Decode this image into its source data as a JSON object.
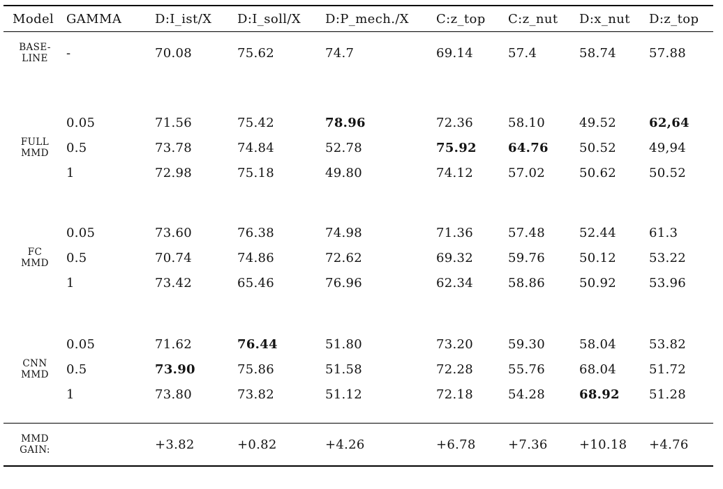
{
  "page": {
    "background_color": "#ffffff",
    "text_color": "#131313",
    "rule_color": "#000000"
  },
  "table": {
    "columns": [
      "Model",
      "GAMMA",
      "D:I_ist/X",
      "D:I_soll/X",
      "D:P_mech./X",
      "C:z_top",
      "C:z_nut",
      "D:x_nut",
      "D:z_top"
    ],
    "groups": [
      {
        "model_lines": [
          "BASE-",
          "LINE"
        ],
        "rows": [
          {
            "gamma": "-",
            "values": [
              "70.08",
              "75.62",
              "74.7",
              "69.14",
              "57.4",
              "58.74",
              "57.88"
            ],
            "bold": []
          }
        ]
      },
      {
        "model_lines": [
          "FULL",
          "MMD"
        ],
        "rows": [
          {
            "gamma": "0.05",
            "values": [
              "71.56",
              "75.42",
              "78.96",
              "72.36",
              "58.10",
              "49.52",
              "62,64"
            ],
            "bold": [
              2,
              6
            ]
          },
          {
            "gamma": "0.5",
            "values": [
              "73.78",
              "74.84",
              "52.78",
              "75.92",
              "64.76",
              "50.52",
              "49,94"
            ],
            "bold": [
              3,
              4
            ]
          },
          {
            "gamma": "1",
            "values": [
              "72.98",
              "75.18",
              "49.80",
              "74.12",
              "57.02",
              "50.62",
              "50.52"
            ],
            "bold": []
          }
        ]
      },
      {
        "model_lines": [
          "FC",
          "MMD"
        ],
        "rows": [
          {
            "gamma": "0.05",
            "values": [
              "73.60",
              "76.38",
              "74.98",
              "71.36",
              "57.48",
              "52.44",
              "61.3"
            ],
            "bold": []
          },
          {
            "gamma": "0.5",
            "values": [
              "70.74",
              "74.86",
              "72.62",
              "69.32",
              "59.76",
              "50.12",
              "53.22"
            ],
            "bold": []
          },
          {
            "gamma": "1",
            "values": [
              "73.42",
              "65.46",
              "76.96",
              "62.34",
              "58.86",
              "50.92",
              "53.96"
            ],
            "bold": []
          }
        ]
      },
      {
        "model_lines": [
          "CNN",
          "MMD"
        ],
        "rows": [
          {
            "gamma": "0.05",
            "values": [
              "71.62",
              "76.44",
              "51.80",
              "73.20",
              "59.30",
              "58.04",
              "53.82"
            ],
            "bold": [
              1
            ]
          },
          {
            "gamma": "0.5",
            "values": [
              "73.90",
              "75.86",
              "51.58",
              "72.28",
              "55.76",
              "68.04",
              "51.72"
            ],
            "bold": [
              0
            ]
          },
          {
            "gamma": "1",
            "values": [
              "73.80",
              "73.82",
              "51.12",
              "72.18",
              "54.28",
              "68.92",
              "51.28"
            ],
            "bold": [
              5
            ]
          }
        ]
      }
    ],
    "footer": {
      "label_lines": [
        "MMD",
        "GAIN:"
      ],
      "gamma": "",
      "values": [
        "+3.82",
        "+0.82",
        "+4.26",
        "+6.78",
        "+7.36",
        "+10.18",
        "+4.76"
      ]
    }
  }
}
